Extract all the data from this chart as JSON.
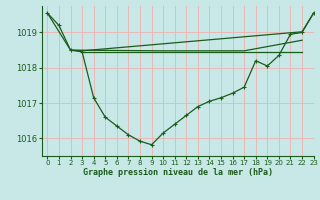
{
  "background_color": "#c8e8e8",
  "grid_color": "#e8b8b8",
  "line_color": "#1a5c1a",
  "xlabel": "Graphe pression niveau de la mer (hPa)",
  "xlabel_color": "#1a5c1a",
  "ylim": [
    1015.5,
    1019.75
  ],
  "xlim": [
    -0.5,
    23
  ],
  "yticks": [
    1016,
    1017,
    1018,
    1019
  ],
  "xticks": [
    0,
    1,
    2,
    3,
    4,
    5,
    6,
    7,
    8,
    9,
    10,
    11,
    12,
    13,
    14,
    15,
    16,
    17,
    18,
    19,
    20,
    21,
    22,
    23
  ],
  "series1_x": [
    0,
    1,
    2,
    3,
    4,
    5,
    6,
    7,
    8,
    9,
    10,
    11,
    12,
    13,
    14,
    15,
    16,
    17,
    18,
    19,
    20,
    21,
    22,
    23
  ],
  "series1_y": [
    1019.55,
    1019.2,
    1018.5,
    1018.45,
    1017.15,
    1016.6,
    1016.35,
    1016.1,
    1015.92,
    1015.82,
    1016.15,
    1016.4,
    1016.65,
    1016.9,
    1017.05,
    1017.15,
    1017.28,
    1017.45,
    1018.2,
    1018.05,
    1018.35,
    1018.95,
    1019.0,
    1019.55
  ],
  "series2_x": [
    0,
    2,
    3,
    22,
    23
  ],
  "series2_y": [
    1019.55,
    1018.5,
    1018.48,
    1019.02,
    1019.55
  ],
  "series3_x": [
    2,
    10,
    17,
    22
  ],
  "series3_y": [
    1018.5,
    1018.48,
    1018.48,
    1018.78
  ],
  "series4_x": [
    3,
    10,
    17,
    22
  ],
  "series4_y": [
    1018.45,
    1018.45,
    1018.45,
    1018.45
  ]
}
